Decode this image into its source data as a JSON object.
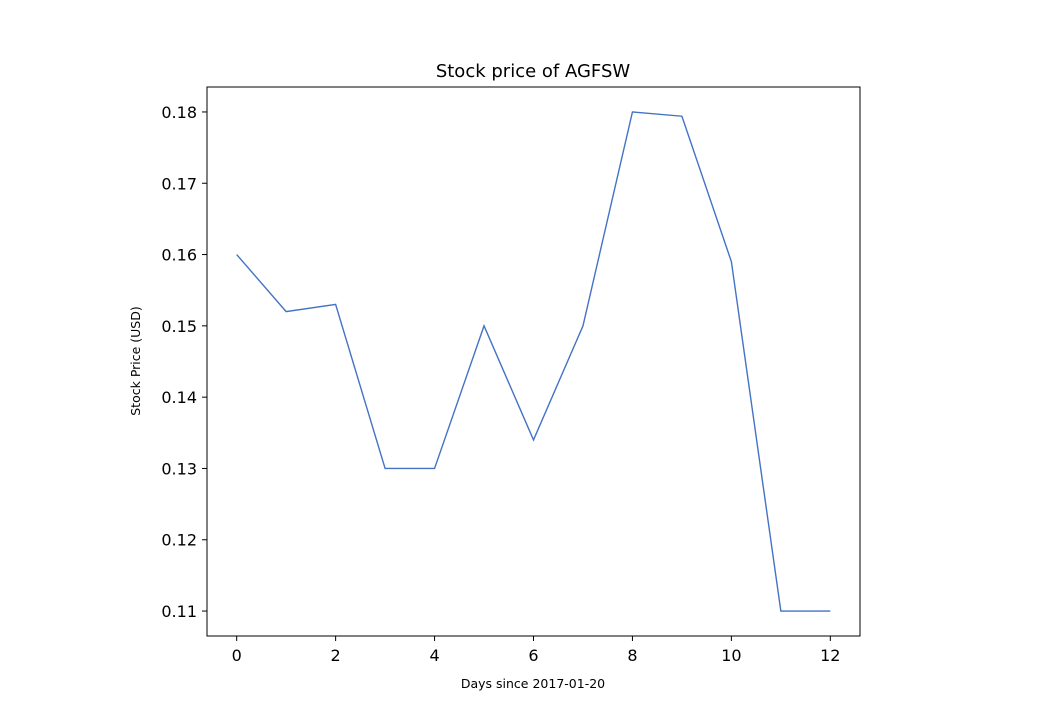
{
  "chart_data": {
    "type": "line",
    "title": "Stock price of AGFSW",
    "xlabel": "Days since 2017-01-20",
    "ylabel": "Stock Price (USD)",
    "x": [
      0,
      1,
      2,
      3,
      4,
      5,
      6,
      7,
      8,
      9,
      10,
      11,
      12
    ],
    "series": [
      {
        "values": [
          0.16,
          0.152,
          0.153,
          0.13,
          0.13,
          0.15,
          0.134,
          0.15,
          0.18,
          0.1794,
          0.159,
          0.11,
          0.11
        ],
        "color": "#4472c4"
      }
    ],
    "xlim": [
      -0.6,
      12.6
    ],
    "ylim": [
      0.1065,
      0.1835
    ],
    "xticks": [
      "0",
      "2",
      "4",
      "6",
      "8",
      "10",
      "12"
    ],
    "yticks": [
      "0.11",
      "0.12",
      "0.13",
      "0.14",
      "0.15",
      "0.16",
      "0.17",
      "0.18"
    ],
    "grid": false,
    "legend": "none"
  }
}
